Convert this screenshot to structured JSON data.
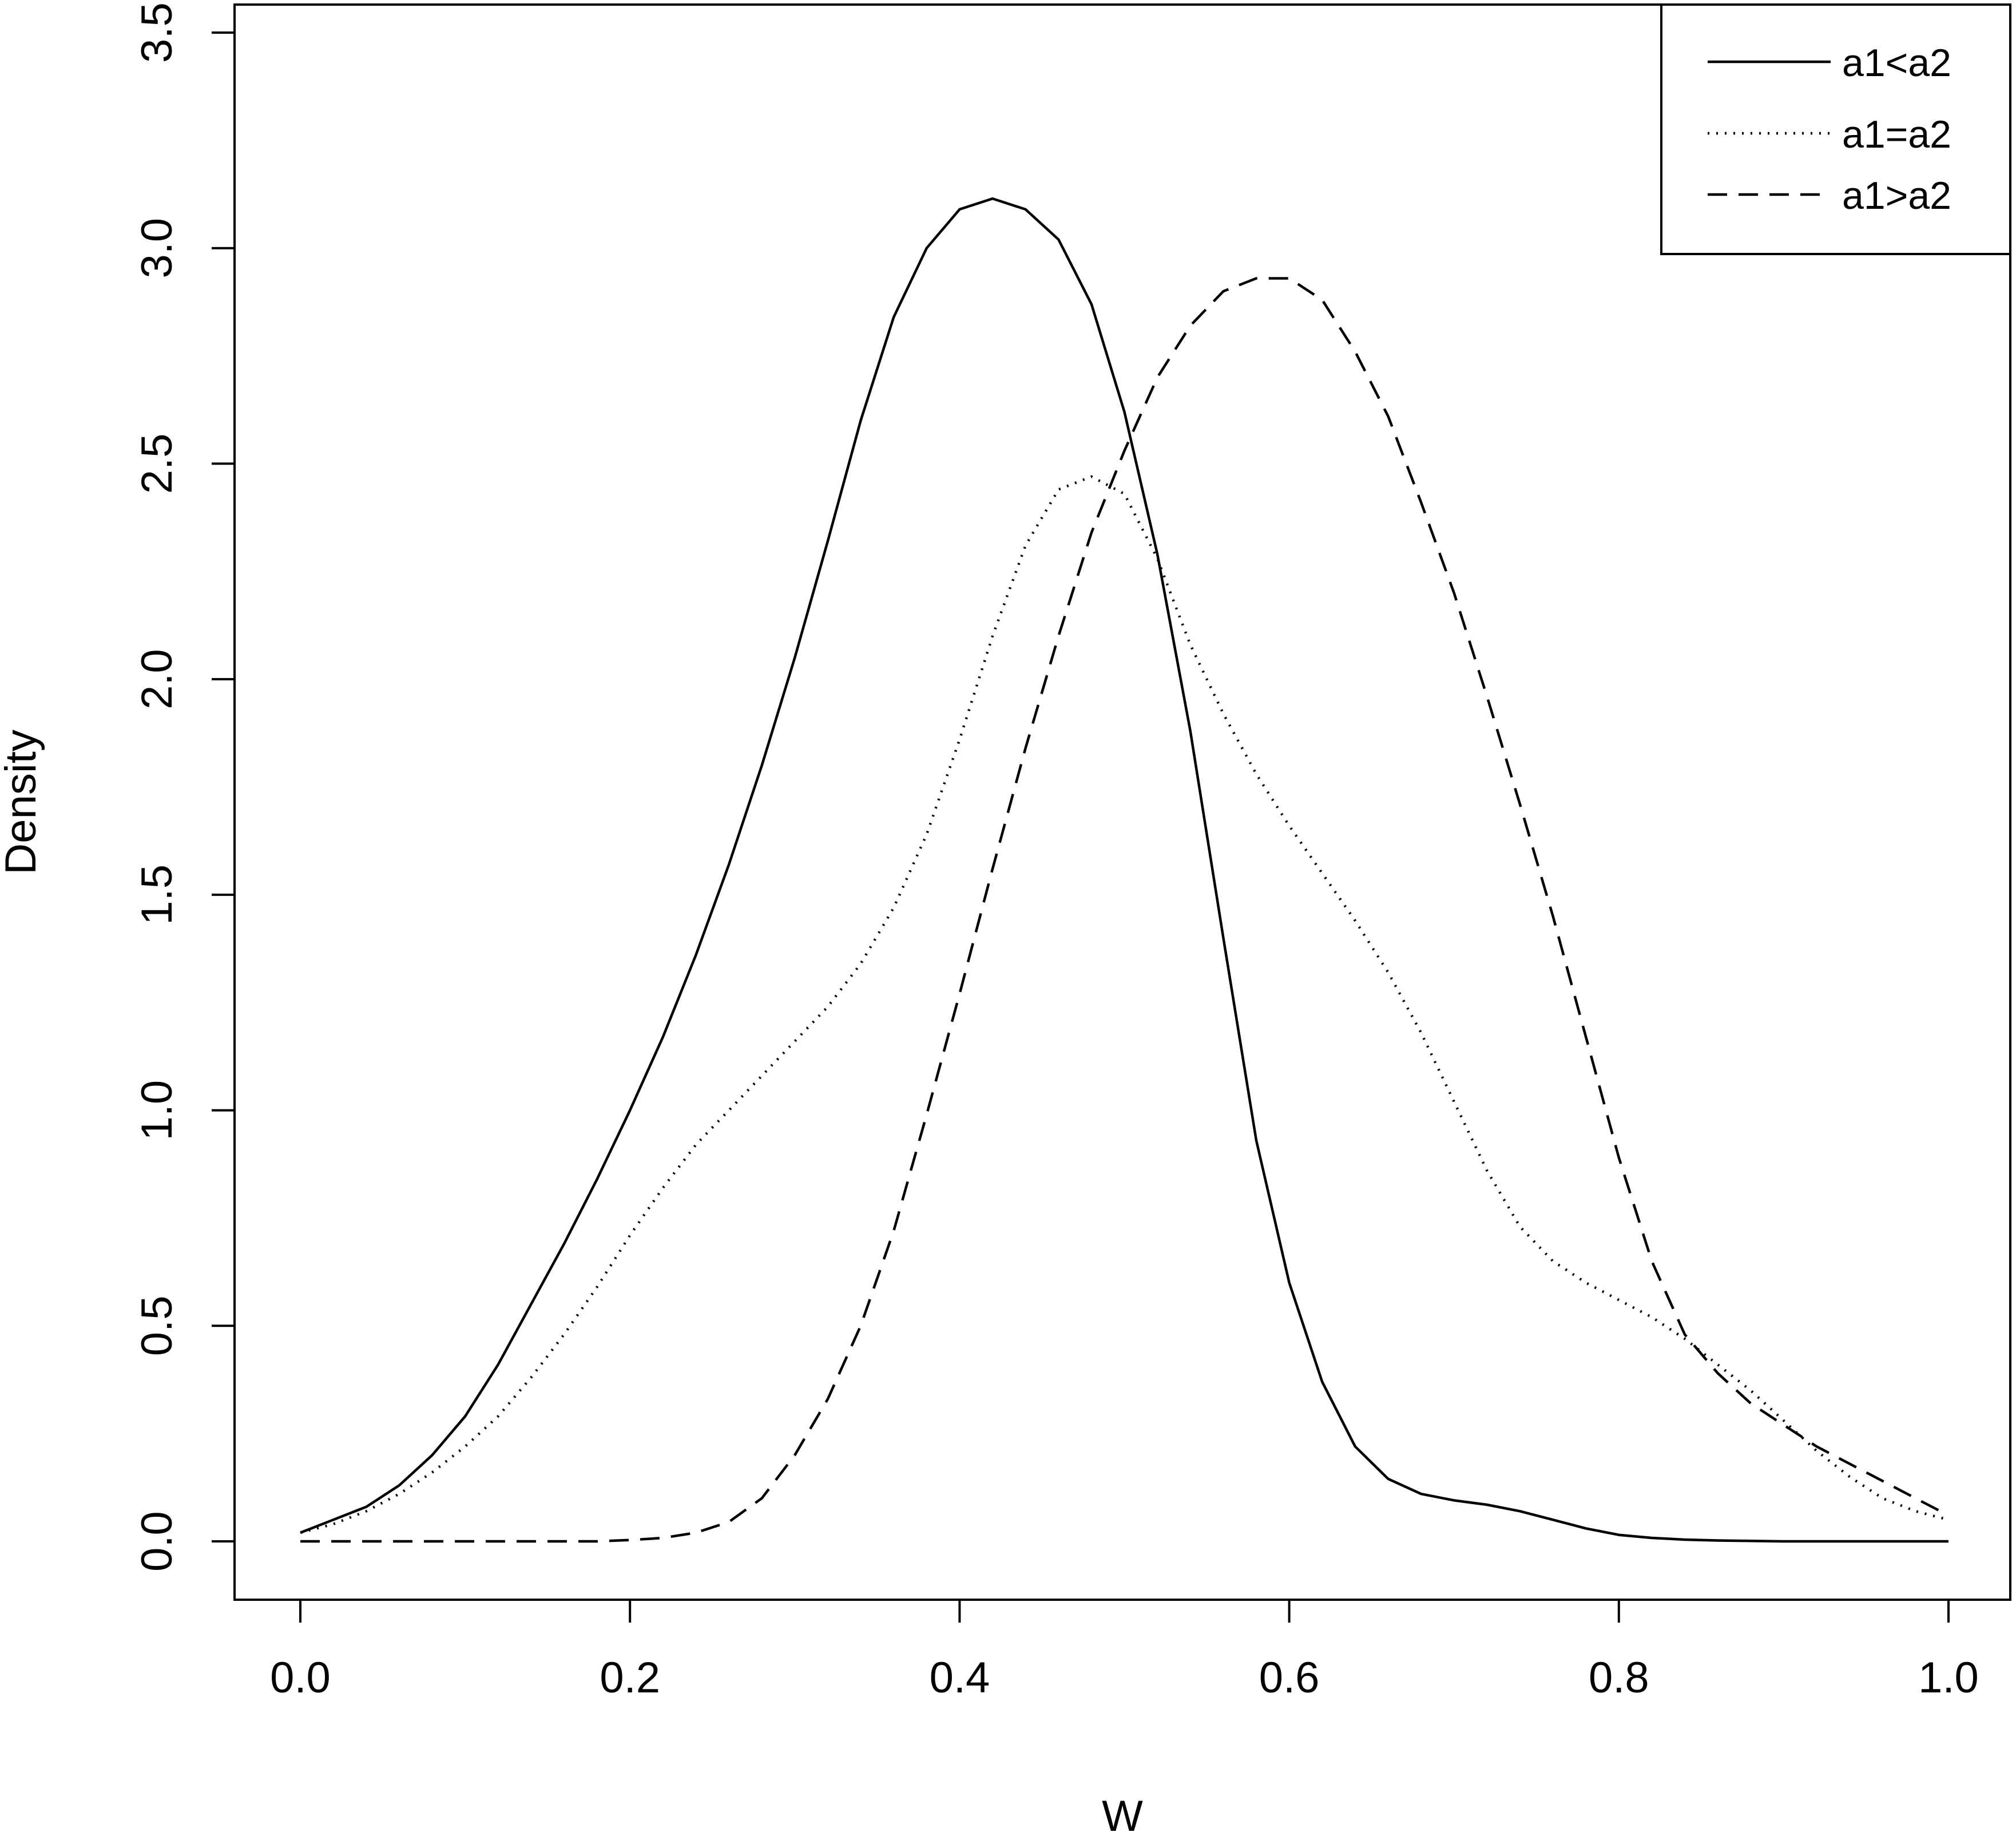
{
  "chart_data": {
    "type": "line",
    "title": "",
    "xlabel": "W",
    "ylabel": "Density",
    "xlim": [
      0.0,
      1.0
    ],
    "ylim": [
      0.0,
      3.5
    ],
    "xticks": [
      "0.0",
      "0.2",
      "0.4",
      "0.6",
      "0.8",
      "1.0"
    ],
    "yticks": [
      "0.0",
      "0.5",
      "1.0",
      "1.5",
      "2.0",
      "2.5",
      "3.0",
      "3.5"
    ],
    "grid": false,
    "legend_position": "top-right",
    "series": [
      {
        "name": "a1<a2",
        "line_style": "solid",
        "color": "#000000",
        "x": [
          0.0,
          0.02,
          0.04,
          0.06,
          0.08,
          0.1,
          0.12,
          0.14,
          0.16,
          0.18,
          0.2,
          0.22,
          0.24,
          0.26,
          0.28,
          0.3,
          0.32,
          0.34,
          0.36,
          0.38,
          0.4,
          0.42,
          0.44,
          0.46,
          0.48,
          0.5,
          0.52,
          0.54,
          0.56,
          0.58,
          0.6,
          0.62,
          0.64,
          0.66,
          0.68,
          0.7,
          0.72,
          0.74,
          0.76,
          0.78,
          0.8,
          0.82,
          0.84,
          0.86,
          0.88,
          0.9,
          0.92,
          0.94,
          0.96,
          0.98,
          1.0
        ],
        "y": [
          0.02,
          0.05,
          0.08,
          0.13,
          0.2,
          0.29,
          0.41,
          0.55,
          0.69,
          0.84,
          1.0,
          1.17,
          1.36,
          1.57,
          1.8,
          2.05,
          2.32,
          2.6,
          2.84,
          3.0,
          3.09,
          3.115,
          3.09,
          3.02,
          2.87,
          2.62,
          2.29,
          1.88,
          1.4,
          0.93,
          0.6,
          0.37,
          0.22,
          0.145,
          0.11,
          0.095,
          0.085,
          0.07,
          0.05,
          0.03,
          0.015,
          0.008,
          0.004,
          0.002,
          0.001,
          0.0,
          0.0,
          0.0,
          0.0,
          0.0,
          0.0
        ]
      },
      {
        "name": "a1=a2",
        "line_style": "dotted",
        "color": "#000000",
        "x": [
          0.0,
          0.02,
          0.04,
          0.06,
          0.08,
          0.1,
          0.12,
          0.14,
          0.16,
          0.18,
          0.2,
          0.22,
          0.24,
          0.26,
          0.28,
          0.3,
          0.32,
          0.34,
          0.36,
          0.38,
          0.4,
          0.42,
          0.44,
          0.46,
          0.48,
          0.5,
          0.52,
          0.54,
          0.56,
          0.58,
          0.6,
          0.62,
          0.64,
          0.66,
          0.68,
          0.7,
          0.72,
          0.74,
          0.76,
          0.78,
          0.8,
          0.82,
          0.84,
          0.86,
          0.88,
          0.9,
          0.92,
          0.94,
          0.96,
          0.98,
          1.0
        ],
        "y": [
          0.02,
          0.04,
          0.07,
          0.11,
          0.16,
          0.22,
          0.29,
          0.38,
          0.48,
          0.59,
          0.71,
          0.82,
          0.92,
          1.0,
          1.08,
          1.16,
          1.24,
          1.34,
          1.47,
          1.64,
          1.86,
          2.1,
          2.31,
          2.44,
          2.47,
          2.43,
          2.28,
          2.08,
          1.92,
          1.78,
          1.66,
          1.55,
          1.44,
          1.32,
          1.18,
          1.02,
          0.86,
          0.73,
          0.65,
          0.6,
          0.56,
          0.52,
          0.47,
          0.41,
          0.35,
          0.28,
          0.21,
          0.15,
          0.1,
          0.07,
          0.05
        ]
      },
      {
        "name": "a1>a2",
        "line_style": "dashed",
        "color": "#000000",
        "x": [
          0.0,
          0.02,
          0.04,
          0.06,
          0.08,
          0.1,
          0.12,
          0.14,
          0.16,
          0.18,
          0.2,
          0.22,
          0.24,
          0.26,
          0.28,
          0.3,
          0.32,
          0.34,
          0.36,
          0.38,
          0.4,
          0.42,
          0.44,
          0.46,
          0.48,
          0.5,
          0.52,
          0.54,
          0.56,
          0.58,
          0.6,
          0.62,
          0.64,
          0.66,
          0.68,
          0.7,
          0.72,
          0.74,
          0.76,
          0.78,
          0.8,
          0.82,
          0.84,
          0.86,
          0.88,
          0.9,
          0.92,
          0.94,
          0.96,
          0.98,
          1.0
        ],
        "y": [
          0.0,
          0.0,
          0.0,
          0.0,
          0.0,
          0.0,
          0.0,
          0.0,
          0.0,
          0.0,
          0.003,
          0.008,
          0.02,
          0.045,
          0.1,
          0.2,
          0.33,
          0.5,
          0.72,
          0.99,
          1.27,
          1.56,
          1.84,
          2.1,
          2.34,
          2.53,
          2.7,
          2.82,
          2.9,
          2.93,
          2.93,
          2.88,
          2.76,
          2.61,
          2.41,
          2.2,
          1.96,
          1.71,
          1.45,
          1.17,
          0.89,
          0.65,
          0.48,
          0.39,
          0.32,
          0.27,
          0.22,
          0.18,
          0.14,
          0.1,
          0.06
        ]
      }
    ]
  }
}
